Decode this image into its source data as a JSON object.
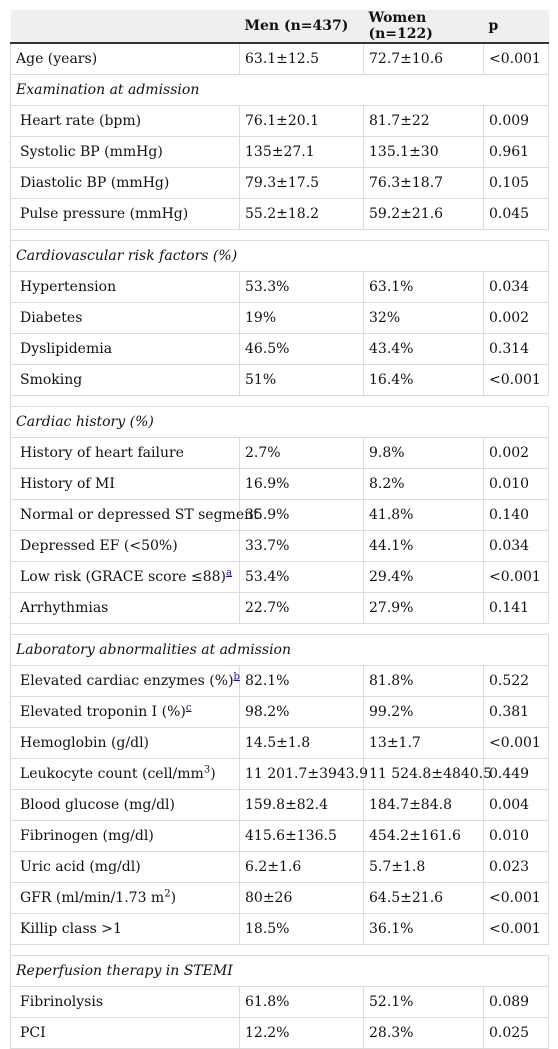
{
  "header": {
    "col1": "",
    "men": "Men (n=437)",
    "women": "Women (n=122)",
    "p": "p"
  },
  "age": {
    "label": "Age (years)",
    "men": "63.1±12.5",
    "women": "72.7±10.6",
    "p": "<0.001"
  },
  "exam": {
    "title": "Examination at admission",
    "rows": [
      {
        "label": "Heart rate (bpm)",
        "men": "76.1±20.1",
        "women": "81.7±22",
        "p": "0.009"
      },
      {
        "label": "Systolic BP (mmHg)",
        "men": "135±27.1",
        "women": "135.1±30",
        "p": "0.961"
      },
      {
        "label": "Diastolic BP (mmHg)",
        "men": "79.3±17.5",
        "women": "76.3±18.7",
        "p": "0.105"
      },
      {
        "label": "Pulse pressure (mmHg)",
        "men": "55.2±18.2",
        "women": "59.2±21.6",
        "p": "0.045"
      }
    ]
  },
  "risk": {
    "title": "Cardiovascular risk factors (%)",
    "rows": [
      {
        "label": "Hypertension",
        "men": "53.3%",
        "women": "63.1%",
        "p": "0.034"
      },
      {
        "label": "Diabetes",
        "men": "19%",
        "women": "32%",
        "p": "0.002"
      },
      {
        "label": "Dyslipidemia",
        "men": "46.5%",
        "women": "43.4%",
        "p": "0.314"
      },
      {
        "label": "Smoking",
        "men": "51%",
        "women": "16.4%",
        "p": "<0.001"
      }
    ]
  },
  "history": {
    "title": "Cardiac history (%)",
    "rows": [
      {
        "label": "History of heart failure",
        "men": "2.7%",
        "women": "9.8%",
        "p": "0.002"
      },
      {
        "label": "History of MI",
        "men": "16.9%",
        "women": "8.2%",
        "p": "0.010"
      },
      {
        "label": "Normal or depressed ST segment",
        "men": "35.9%",
        "women": "41.8%",
        "p": "0.140"
      },
      {
        "label": "Depressed EF (<50%)",
        "men": "33.7%",
        "women": "44.1%",
        "p": "0.034"
      },
      {
        "label": "Low risk (GRACE score ≤88)",
        "sup": "a",
        "men": "53.4%",
        "women": "29.4%",
        "p": "<0.001"
      },
      {
        "label": "Arrhythmias",
        "men": "22.7%",
        "women": "27.9%",
        "p": "0.141"
      }
    ]
  },
  "lab": {
    "title": "Laboratory abnormalities at admission",
    "rows": [
      {
        "label": "Elevated cardiac enzymes (%)",
        "sup": "b",
        "men": "82.1%",
        "women": "81.8%",
        "p": "0.522"
      },
      {
        "label": "Elevated troponin I (%)",
        "sup": "c",
        "men": "98.2%",
        "women": "99.2%",
        "p": "0.381"
      },
      {
        "label": "Hemoglobin (g/dl)",
        "men": "14.5±1.8",
        "women": "13±1.7",
        "p": "<0.001"
      },
      {
        "label": "Leukocyte count (cell/mm",
        "unit_sup": "3",
        "label_end": ")",
        "men": "11 201.7±3943.9",
        "women": "11 524.8±4840.5",
        "p": "0.449"
      },
      {
        "label": "Blood glucose (mg/dl)",
        "men": "159.8±82.4",
        "women": "184.7±84.8",
        "p": "0.004"
      },
      {
        "label": "Fibrinogen (mg/dl)",
        "men": "415.6±136.5",
        "women": "454.2±161.6",
        "p": "0.010"
      },
      {
        "label": "Uric acid (mg/dl)",
        "men": "6.2±1.6",
        "women": "5.7±1.8",
        "p": "0.023"
      },
      {
        "label": "GFR (ml/min/1.73 m",
        "unit_sup": "2",
        "label_end": ")",
        "men": "80±26",
        "women": "64.5±21.6",
        "p": "<0.001"
      },
      {
        "label": "Killip class >1",
        "men": "18.5%",
        "women": "36.1%",
        "p": "<0.001"
      }
    ]
  },
  "reperfusion": {
    "title": "Reperfusion therapy in STEMI",
    "rows": [
      {
        "label": "Fibrinolysis",
        "men": "61.8%",
        "women": "52.1%",
        "p": "0.089"
      },
      {
        "label": "PCI",
        "men": "12.2%",
        "women": "28.3%",
        "p": "0.025"
      }
    ]
  }
}
